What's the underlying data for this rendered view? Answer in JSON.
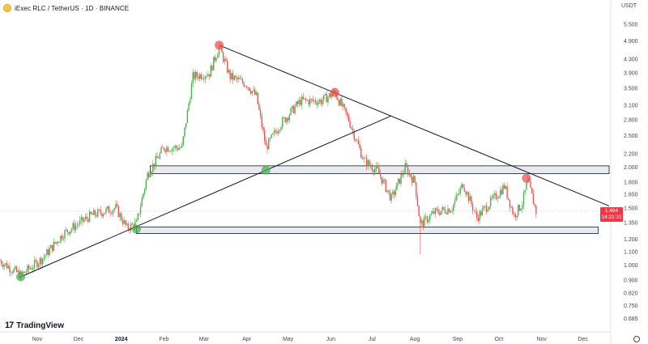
{
  "header": {
    "title": "iExec RLC / TetherUS · 1D · BINANCE",
    "icon": "iexec-logo-icon"
  },
  "currency": "USDT",
  "price_badge": {
    "price": "1.464",
    "countdown": "14:21:31",
    "color": "#f23645"
  },
  "logo": {
    "text": "TradingView",
    "icon": "tradingview-logo-icon"
  },
  "colors": {
    "up": "#26a69a",
    "down": "#ef5350",
    "up_candle": "#4caf50",
    "zone": "#e8eaf0"
  },
  "chart_data": {
    "type": "candlestick",
    "y_scale": "log",
    "ylim": [
      0.63,
      5.9
    ],
    "y_ticks": [
      "5.500",
      "4.900",
      "4.300",
      "3.900",
      "3.500",
      "3.100",
      "2.800",
      "2.500",
      "2.200",
      "2.000",
      "1.800",
      "1.650",
      "1.500",
      "1.350",
      "1.200",
      "1.100",
      "1.000",
      "0.900",
      "0.820",
      "0.750",
      "0.685"
    ],
    "x_ticks": [
      {
        "label": "Nov",
        "date": "2023-11-01"
      },
      {
        "label": "Dec",
        "date": "2023-12-01"
      },
      {
        "label": "2024",
        "date": "2024-01-01",
        "bold": true
      },
      {
        "label": "Feb",
        "date": "2024-02-01"
      },
      {
        "label": "Mar",
        "date": "2024-03-01"
      },
      {
        "label": "Apr",
        "date": "2024-04-01"
      },
      {
        "label": "May",
        "date": "2024-05-01"
      },
      {
        "label": "Jun",
        "date": "2024-06-01"
      },
      {
        "label": "Jul",
        "date": "2024-07-01"
      },
      {
        "label": "Aug",
        "date": "2024-08-01"
      },
      {
        "label": "Sep",
        "date": "2024-09-01"
      },
      {
        "label": "Oct",
        "date": "2024-10-01"
      },
      {
        "label": "Nov",
        "date": "2024-11-01"
      },
      {
        "label": "Dec",
        "date": "2024-12-01"
      }
    ],
    "xlim": [
      "2023-10-05",
      "2024-12-20"
    ],
    "price_path": [
      [
        "2023-10-05",
        1.03
      ],
      [
        "2023-10-20",
        0.93
      ],
      [
        "2023-11-05",
        1.05
      ],
      [
        "2023-11-20",
        1.25
      ],
      [
        "2023-12-10",
        1.42
      ],
      [
        "2023-12-28",
        1.5
      ],
      [
        "2024-01-05",
        1.3
      ],
      [
        "2024-01-12",
        1.34
      ],
      [
        "2024-01-20",
        1.9
      ],
      [
        "2024-02-01",
        2.3
      ],
      [
        "2024-02-14",
        2.3
      ],
      [
        "2024-02-22",
        3.8
      ],
      [
        "2024-03-05",
        3.9
      ],
      [
        "2024-03-12",
        4.7
      ],
      [
        "2024-03-20",
        3.8
      ],
      [
        "2024-04-01",
        3.6
      ],
      [
        "2024-04-08",
        3.3
      ],
      [
        "2024-04-15",
        2.3
      ],
      [
        "2024-04-25",
        2.7
      ],
      [
        "2024-05-10",
        3.2
      ],
      [
        "2024-05-25",
        3.2
      ],
      [
        "2024-06-04",
        3.4
      ],
      [
        "2024-06-14",
        2.8
      ],
      [
        "2024-06-25",
        2.1
      ],
      [
        "2024-07-05",
        1.95
      ],
      [
        "2024-07-15",
        1.6
      ],
      [
        "2024-07-25",
        2.0
      ],
      [
        "2024-08-01",
        1.8
      ],
      [
        "2024-08-05",
        1.33
      ],
      [
        "2024-08-15",
        1.45
      ],
      [
        "2024-08-28",
        1.5
      ],
      [
        "2024-09-05",
        1.78
      ],
      [
        "2024-09-15",
        1.4
      ],
      [
        "2024-09-30",
        1.65
      ],
      [
        "2024-10-05",
        1.75
      ],
      [
        "2024-10-12",
        1.42
      ],
      [
        "2024-10-18",
        1.55
      ],
      [
        "2024-10-22",
        1.82
      ],
      [
        "2024-10-28",
        1.46
      ]
    ],
    "last_price": 1.464,
    "last_date": "2024-10-28",
    "drawings": {
      "descending_trendline": {
        "from": [
          "2024-03-12",
          4.75
        ],
        "to": [
          "2024-12-20",
          1.52
        ]
      },
      "ascending_trendline": {
        "from": [
          "2023-10-20",
          0.92
        ],
        "to": [
          "2024-07-15",
          2.88
        ]
      },
      "resistance_zone": {
        "x_from": "2024-01-22",
        "x_to": "2024-12-20",
        "y_low": 1.91,
        "y_high": 2.02
      },
      "support_zone": {
        "x_from": "2024-01-12",
        "x_to": "2024-12-12",
        "y_low": 1.25,
        "y_high": 1.31
      },
      "markers": [
        {
          "date": "2024-03-12",
          "price": 4.75,
          "kind": "high",
          "color": "#ef5350"
        },
        {
          "date": "2024-06-04",
          "price": 3.4,
          "kind": "high",
          "color": "#ef5350"
        },
        {
          "date": "2024-10-21",
          "price": 1.85,
          "kind": "high",
          "color": "#ef5350"
        },
        {
          "date": "2023-10-20",
          "price": 0.92,
          "kind": "low",
          "color": "#4caf50"
        },
        {
          "date": "2024-01-12",
          "price": 1.29,
          "kind": "low",
          "color": "#4caf50"
        },
        {
          "date": "2024-04-15",
          "price": 1.96,
          "kind": "low",
          "color": "#4caf50"
        }
      ]
    }
  }
}
